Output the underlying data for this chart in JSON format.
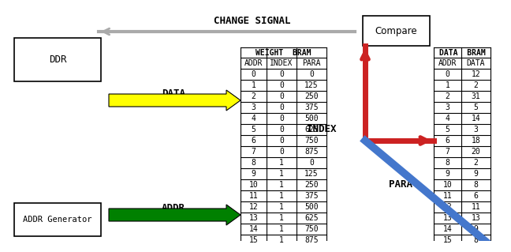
{
  "title": "CHANGE SIGNAL",
  "compare_label": "Compare",
  "ddr_label": "DDR",
  "addr_gen_label": "ADDR Generator",
  "data_label": "DATA",
  "addr_label": "ADDR",
  "index_label": "INDEX",
  "para_label": "PARA",
  "weight_bram_title": "WEIGHT  BRAM",
  "data_bram_title": "DATA  BRAM",
  "weight_bram_headers": [
    "ADDR",
    "INDEX",
    "PARA"
  ],
  "data_bram_headers": [
    "ADDR",
    "DATA"
  ],
  "weight_bram_data": [
    [
      0,
      0,
      0
    ],
    [
      1,
      0,
      125
    ],
    [
      2,
      0,
      250
    ],
    [
      3,
      0,
      375
    ],
    [
      4,
      0,
      500
    ],
    [
      5,
      0,
      625
    ],
    [
      6,
      0,
      750
    ],
    [
      7,
      0,
      875
    ],
    [
      8,
      1,
      0
    ],
    [
      9,
      1,
      125
    ],
    [
      10,
      1,
      250
    ],
    [
      11,
      1,
      375
    ],
    [
      12,
      1,
      500
    ],
    [
      13,
      1,
      625
    ],
    [
      14,
      1,
      750
    ],
    [
      15,
      1,
      875
    ]
  ],
  "data_bram_data": [
    [
      0,
      12
    ],
    [
      1,
      2
    ],
    [
      2,
      31
    ],
    [
      3,
      5
    ],
    [
      4,
      14
    ],
    [
      5,
      3
    ],
    [
      6,
      18
    ],
    [
      7,
      20
    ],
    [
      8,
      2
    ],
    [
      9,
      9
    ],
    [
      10,
      8
    ],
    [
      11,
      6
    ],
    [
      12,
      11
    ],
    [
      13,
      13
    ],
    [
      14,
      9
    ],
    [
      15,
      8
    ]
  ],
  "yellow_color": "#FFFF00",
  "green_color": "#008000",
  "red_color": "#CC2222",
  "blue_color": "#4477CC",
  "gray_color": "#AAAAAA",
  "bg_color": "#FFFFFF"
}
